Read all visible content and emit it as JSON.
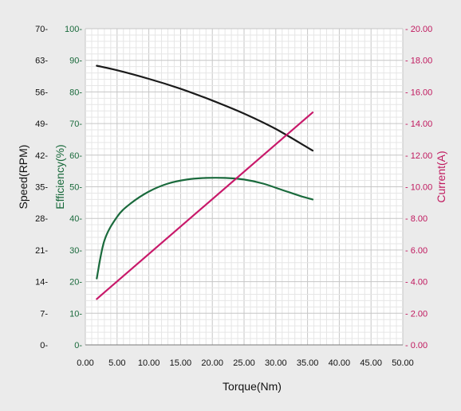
{
  "chart_data": {
    "type": "line",
    "xlabel": "Torque(Nm)",
    "xlim": [
      0,
      50
    ],
    "xticks": [
      "0.00",
      "5.00",
      "10.00",
      "15.00",
      "20.00",
      "25.00",
      "30.00",
      "35.00",
      "40.00",
      "45.00",
      "50.00"
    ],
    "axes": {
      "speed": {
        "label": "Speed(RPM)",
        "range": [
          0,
          70
        ],
        "ticks": [
          "0-",
          "7-",
          "14-",
          "21-",
          "28-",
          "35-",
          "42-",
          "49-",
          "56-",
          "63-",
          "70-"
        ],
        "color": "#111111"
      },
      "efficiency": {
        "label": "Efficiency(%)",
        "range": [
          0,
          100
        ],
        "ticks": [
          "0-",
          "10-",
          "20-",
          "30-",
          "40-",
          "50-",
          "60-",
          "70-",
          "80-",
          "90-",
          "100-"
        ],
        "color": "#1a6a3c"
      },
      "current": {
        "label": "Current(A)",
        "range": [
          0,
          20
        ],
        "ticks": [
          "- 0.00",
          "- 2.00",
          "- 4.00",
          "- 6.00",
          "- 8.00",
          "- 10.00",
          "- 12.00",
          "- 14.00",
          "- 16.00",
          "- 18.00",
          "- 20.00"
        ],
        "color": "#c0185e"
      }
    },
    "grid": true,
    "series": [
      {
        "axis": "speed",
        "color": "#1a1a1a",
        "x": [
          1.8,
          5,
          10,
          15,
          20,
          25,
          30,
          35.8
        ],
        "y": [
          61.8,
          60.8,
          58.9,
          56.7,
          54.1,
          51.2,
          47.8,
          43.0
        ]
      },
      {
        "axis": "efficiency",
        "color": "#1a6a3c",
        "x": [
          1.8,
          3,
          5,
          7,
          10,
          13,
          16,
          19,
          22,
          25,
          28,
          31,
          34,
          35.8
        ],
        "y": [
          21,
          33,
          40.5,
          44.5,
          48.5,
          51,
          52.3,
          52.8,
          52.8,
          52.3,
          51,
          49,
          47,
          46
        ]
      },
      {
        "axis": "current",
        "color": "#c8196a",
        "x": [
          1.8,
          35.8
        ],
        "y": [
          2.9,
          14.7
        ]
      }
    ]
  }
}
